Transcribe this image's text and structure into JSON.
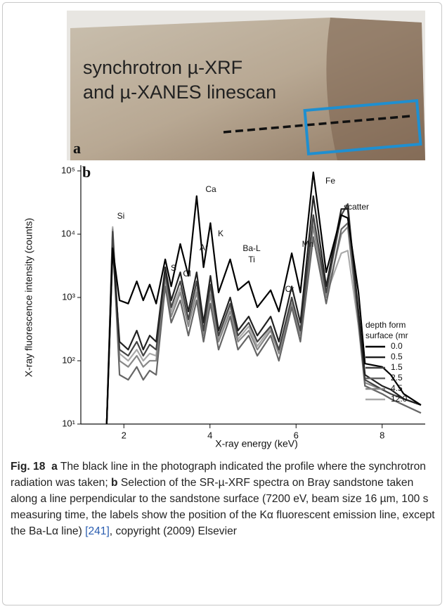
{
  "photo": {
    "line1": "synchrotron µ-XRF",
    "line2": "and µ-XANES linescan",
    "panel_label": "a"
  },
  "chart_data": {
    "type": "line",
    "panel_label": "b",
    "xlabel": "X-ray energy (keV)",
    "ylabel": "X-ray fluorescence intensity (counts)",
    "x": [
      1.6,
      1.74,
      1.9,
      2.1,
      2.3,
      2.45,
      2.6,
      2.75,
      2.96,
      3.1,
      3.31,
      3.5,
      3.69,
      3.85,
      4.01,
      4.2,
      4.47,
      4.65,
      4.9,
      5.1,
      5.41,
      5.6,
      5.9,
      6.1,
      6.4,
      6.7,
      7.05,
      7.2,
      7.45,
      7.6,
      8.0,
      8.2,
      8.5,
      8.9
    ],
    "xlim": [
      1,
      9
    ],
    "xticks": [
      2,
      4,
      6,
      8
    ],
    "ylim": [
      10,
      100000
    ],
    "log_y": true,
    "yticks": [
      {
        "value": 10,
        "label": "10¹"
      },
      {
        "value": 100,
        "label": "10²"
      },
      {
        "value": 1000,
        "label": "10³"
      },
      {
        "value": 10000,
        "label": "10⁴"
      },
      {
        "value": 100000,
        "label": "10⁵"
      }
    ],
    "legend_title": [
      "depth form",
      "surface (mr"
    ],
    "series": [
      {
        "name": "0.0",
        "color": "#000000",
        "values": [
          10,
          6000,
          900,
          800,
          1800,
          900,
          1600,
          800,
          4000,
          1500,
          7000,
          2200,
          40000,
          3000,
          15000,
          1200,
          4000,
          1300,
          1800,
          700,
          1300,
          600,
          5000,
          1200,
          95000,
          2500,
          20000,
          18000,
          1200,
          90,
          80,
          60,
          30,
          20
        ]
      },
      {
        "name": "0.5",
        "color": "#222222",
        "values": [
          10,
          6000,
          200,
          150,
          300,
          150,
          250,
          200,
          3000,
          900,
          2500,
          600,
          2500,
          400,
          2200,
          300,
          1000,
          300,
          500,
          250,
          500,
          200,
          1500,
          400,
          40000,
          1500,
          25000,
          25000,
          600,
          60,
          40,
          35,
          25,
          20
        ]
      },
      {
        "name": "1.5",
        "color": "#444444",
        "values": [
          10,
          11000,
          150,
          120,
          200,
          120,
          180,
          150,
          2500,
          700,
          1800,
          450,
          1800,
          300,
          1600,
          250,
          800,
          250,
          400,
          200,
          350,
          150,
          1000,
          300,
          20000,
          1200,
          20000,
          30000,
          500,
          50,
          35,
          30,
          25,
          20
        ]
      },
      {
        "name": "2.5",
        "color": "#666666",
        "values": [
          10,
          9000,
          60,
          50,
          80,
          50,
          70,
          60,
          1500,
          400,
          900,
          250,
          900,
          200,
          800,
          150,
          500,
          150,
          250,
          120,
          250,
          100,
          700,
          200,
          9000,
          800,
          12000,
          15000,
          400,
          40,
          30,
          25,
          20,
          15
        ]
      },
      {
        "name": "4.5",
        "color": "#888888",
        "values": [
          10,
          12000,
          100,
          80,
          120,
          80,
          100,
          100,
          2000,
          500,
          1200,
          350,
          1200,
          250,
          1100,
          200,
          600,
          200,
          300,
          150,
          300,
          130,
          800,
          250,
          13000,
          1000,
          10000,
          13000,
          400,
          45,
          35,
          30,
          25,
          20
        ]
      },
      {
        "name": "12.0",
        "color": "#aaaaaa",
        "values": [
          10,
          13000,
          130,
          100,
          150,
          100,
          130,
          120,
          2200,
          600,
          1400,
          400,
          1400,
          300,
          1300,
          230,
          700,
          220,
          350,
          170,
          330,
          150,
          900,
          280,
          16000,
          1100,
          5000,
          5500,
          350,
          40,
          30,
          25,
          20,
          15
        ]
      }
    ],
    "annotations": [
      "Si",
      "S",
      "Cl",
      "Ar",
      "K",
      "Ca",
      "Ba-L",
      "Ti",
      "Cr",
      "Mn",
      "Fe",
      "scatter"
    ]
  },
  "caption": {
    "fig_label": "Fig. 18",
    "a_label": "a",
    "a_text": " The black line in the photograph indicated the profile where the synchrotron radiation was taken; ",
    "b_label": "b",
    "b_text": " Selection of the SR-µ-XRF spectra on Bray sandstone taken along a line perpendicular to the sandstone surface (7200 eV, beam size 16 µm, 100 s measuring time, the labels show the position of the Kα fluorescent emission line, except the Ba-Lα line) ",
    "ref": "[241]",
    "tail": ", copyright (2009) Elsevier"
  }
}
